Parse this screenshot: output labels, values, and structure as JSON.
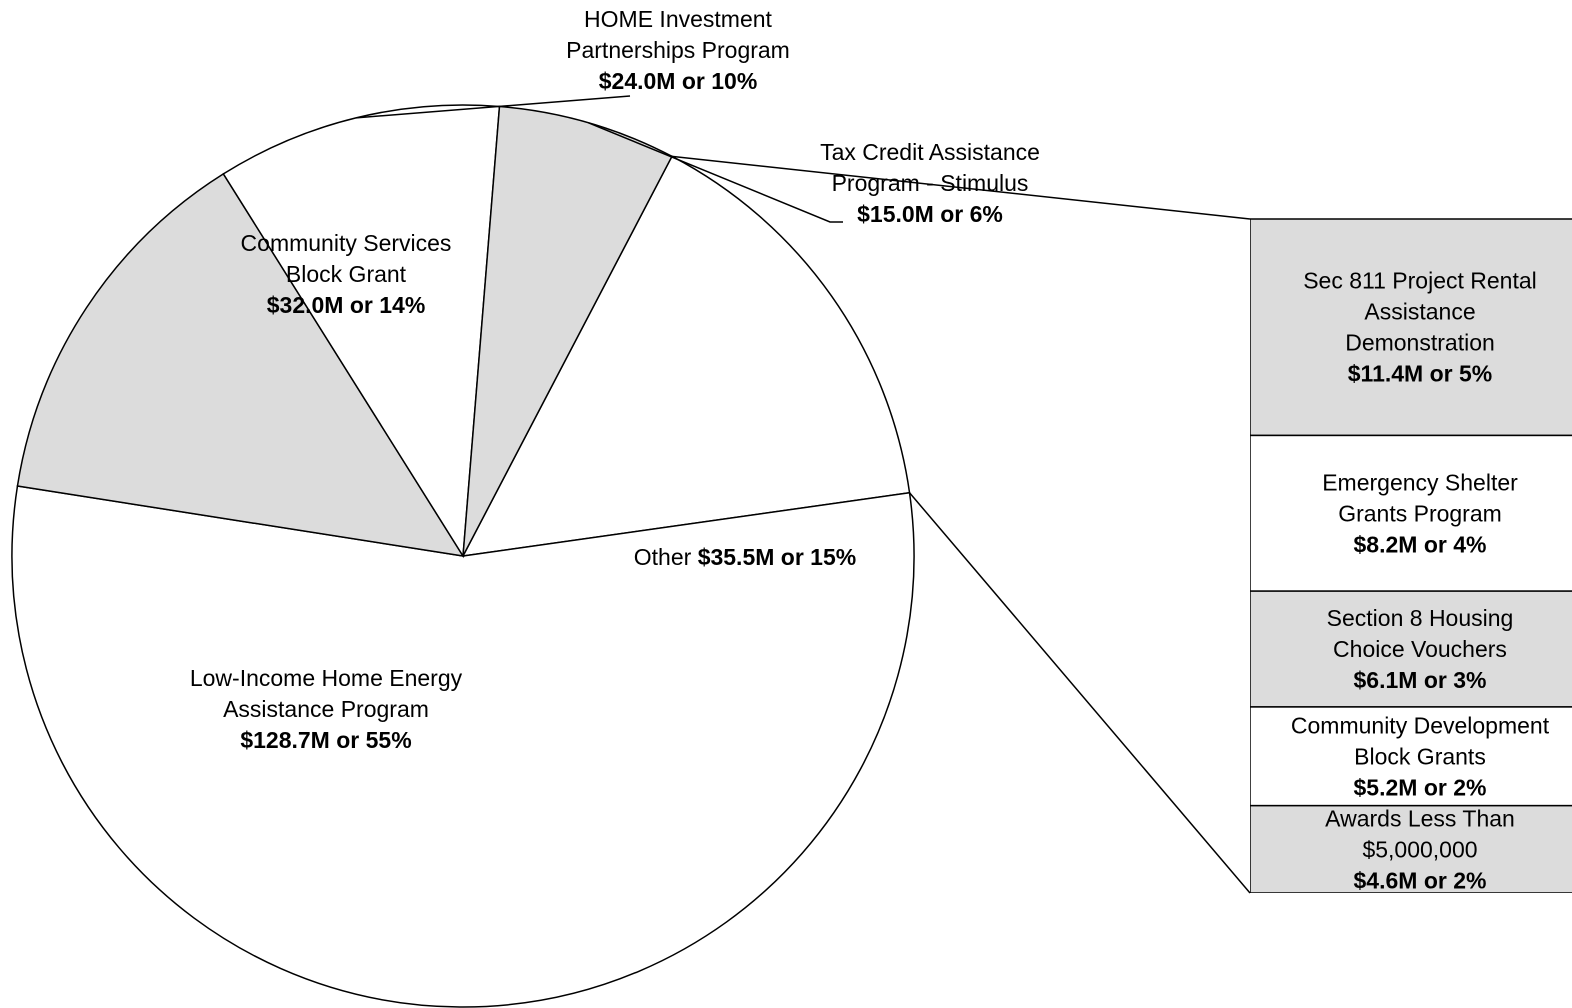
{
  "chart_data": {
    "type": "pie",
    "title": "",
    "colors": {
      "shaded": "#dcdcdc",
      "plain": "#ffffff",
      "stroke": "#000000"
    },
    "slices": [
      {
        "name": "Low-Income Home Energy Assistance Program",
        "label_lines": [
          "Low-Income Home Energy",
          "Assistance Program"
        ],
        "value_label": "$128.7M or 55%",
        "value": 128.7,
        "percent": 55
      },
      {
        "name": "Community Services Block Grant",
        "label_lines": [
          "Community Services",
          "Block Grant"
        ],
        "value_label": "$32.0M or 14%",
        "value": 32.0,
        "percent": 14
      },
      {
        "name": "HOME Investment Partnerships Program",
        "label_lines": [
          "HOME Investment",
          "Partnerships Program"
        ],
        "value_label": "$24.0M or 10%",
        "value": 24.0,
        "percent": 10
      },
      {
        "name": "Tax Credit Assistance Program - Stimulus",
        "label_lines": [
          "Tax Credit Assistance",
          "Program - Stimulus"
        ],
        "value_label": "$15.0M or 6%",
        "value": 15.0,
        "percent": 6
      },
      {
        "name": "Other",
        "label_lines": [
          "Other"
        ],
        "value_label": "$35.5M or 15%",
        "value": 35.5,
        "percent": 15
      }
    ],
    "breakdown": {
      "of": "Other",
      "items": [
        {
          "name": "Sec 811 Project Rental Assistance Demonstration",
          "label_lines": [
            "Sec 811 Project Rental",
            "Assistance",
            "Demonstration"
          ],
          "value_label": "$11.4M or 5%",
          "value": 11.4,
          "percent": 5
        },
        {
          "name": "Emergency Shelter Grants Program",
          "label_lines": [
            "Emergency Shelter",
            "Grants Program"
          ],
          "value_label": "$8.2M or 4%",
          "value": 8.2,
          "percent": 4
        },
        {
          "name": "Section 8 Housing Choice Vouchers",
          "label_lines": [
            "Section 8 Housing",
            "Choice Vouchers"
          ],
          "value_label": "$6.1M or 3%",
          "value": 6.1,
          "percent": 3
        },
        {
          "name": "Community Development Block Grants",
          "label_lines": [
            "Community Development",
            "Block Grants"
          ],
          "value_label": "$5.2M or 2%",
          "value": 5.2,
          "percent": 2
        },
        {
          "name": "Awards Less Than $5,000,000",
          "label_lines": [
            "Awards Less Than",
            "$5,000,000"
          ],
          "value_label": "$4.6M or 2%",
          "value": 4.6,
          "percent": 2
        }
      ]
    }
  }
}
